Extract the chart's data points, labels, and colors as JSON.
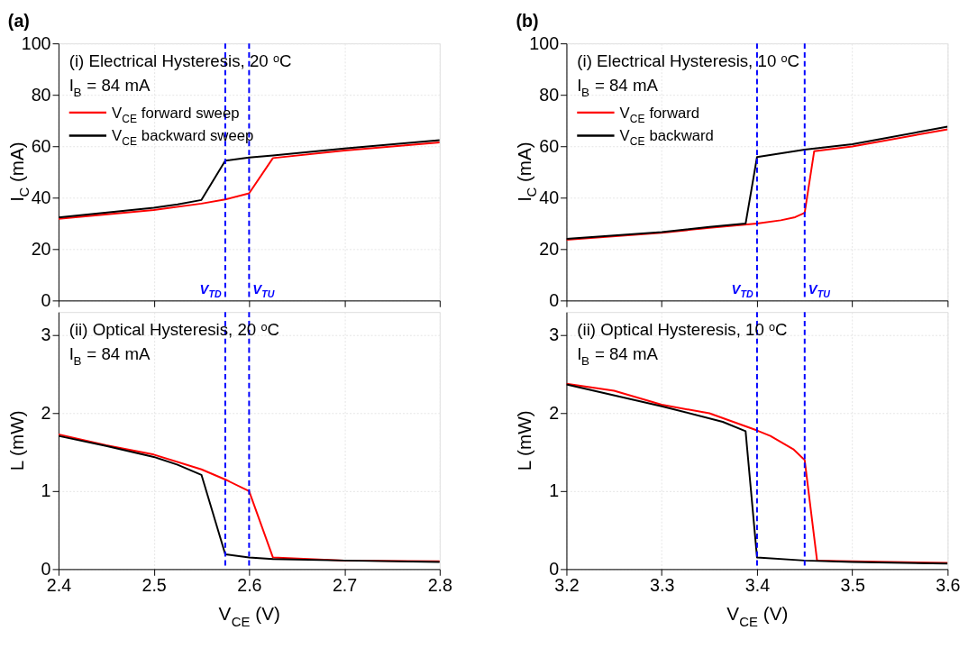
{
  "chart_data": [
    {
      "type": "line",
      "title": "(a)",
      "ylabel": "I$_{C}$ (mA)",
      "xlim": [
        2.4,
        2.8
      ],
      "xticks": [
        2.4,
        2.5,
        2.6,
        2.7,
        2.8
      ],
      "ylim": [
        0,
        100
      ],
      "yticks": [
        0,
        20,
        40,
        60,
        80,
        100
      ],
      "tick_labels": "y",
      "grid": true,
      "legend": "top left",
      "annotations": [
        "(i) Electrical Hysteresis, 20 ᵒC",
        "I$_{B}$ = 84 mA"
      ],
      "ref_lines": [
        {
          "axis": "x",
          "value": 2.575,
          "label": "V$_{TD}$",
          "color": "#0000ff",
          "line_style": "dashed"
        },
        {
          "axis": "x",
          "value": 2.6,
          "label": "V$_{TU}$",
          "color": "#0000ff",
          "line_style": "dashed"
        }
      ],
      "series": [
        {
          "name": "V$_{CE}$ forward sweep",
          "color": "#ff0000",
          "x": [
            2.4,
            2.5,
            2.55,
            2.575,
            2.6,
            2.625,
            2.7,
            2.8
          ],
          "values": [
            31.8,
            35.2,
            37.7,
            39.3,
            41.7,
            55.4,
            58.3,
            61.5
          ]
        },
        {
          "name": "V$_{CE}$ backward sweep",
          "color": "#000000",
          "x": [
            2.4,
            2.5,
            2.525,
            2.55,
            2.575,
            2.6,
            2.625,
            2.7,
            2.8
          ],
          "values": [
            32.3,
            36.1,
            37.4,
            39.1,
            54.4,
            55.6,
            56.4,
            59.1,
            62.4
          ]
        }
      ]
    },
    {
      "type": "line",
      "xlabel": "V$_{CE}$ (V)",
      "ylabel": "L (mW)",
      "xlim": [
        2.4,
        2.8
      ],
      "xticks": [
        2.4,
        2.5,
        2.6,
        2.7,
        2.8
      ],
      "ylim": [
        0,
        3.3
      ],
      "yticks": [
        0,
        1,
        2,
        3
      ],
      "grid": true,
      "annotations": [
        "(ii) Optical Hysteresis, 20 ᵒC",
        "I$_{B}$ = 84 mA"
      ],
      "ref_lines": [
        {
          "axis": "x",
          "value": 2.575,
          "color": "#0000ff",
          "line_style": "dashed"
        },
        {
          "axis": "x",
          "value": 2.6,
          "color": "#0000ff",
          "line_style": "dashed"
        }
      ],
      "series": [
        {
          "color": "#ff0000",
          "x": [
            2.4,
            2.45,
            2.5,
            2.55,
            2.575,
            2.6,
            2.625,
            2.7,
            2.8
          ],
          "values": [
            1.73,
            1.59,
            1.47,
            1.28,
            1.15,
            1.0,
            0.15,
            0.11,
            0.1
          ]
        },
        {
          "color": "#000000",
          "x": [
            2.4,
            2.45,
            2.5,
            2.525,
            2.55,
            2.575,
            2.6,
            2.625,
            2.7,
            2.8
          ],
          "values": [
            1.71,
            1.58,
            1.44,
            1.34,
            1.21,
            0.19,
            0.15,
            0.13,
            0.11,
            0.09
          ]
        }
      ]
    },
    {
      "type": "line",
      "title": "(b)",
      "ylabel": "I$_{C}$ (mA)",
      "xlim": [
        3.2,
        3.6
      ],
      "xticks": [
        3.2,
        3.3,
        3.4,
        3.5,
        3.6
      ],
      "ylim": [
        0,
        100
      ],
      "yticks": [
        0,
        20,
        40,
        60,
        80,
        100
      ],
      "tick_labels": "y",
      "grid": true,
      "legend": "top left",
      "annotations": [
        "(i) Electrical Hysteresis, 10 ᵒC",
        "I$_{B}$ = 84 mA"
      ],
      "ref_lines": [
        {
          "axis": "x",
          "value": 3.4,
          "label": "V$_{TD}$",
          "color": "#0000ff",
          "line_style": "dashed"
        },
        {
          "axis": "x",
          "value": 3.45,
          "label": "V$_{TU}$",
          "color": "#0000ff",
          "line_style": "dashed"
        }
      ],
      "series": [
        {
          "name": "V$_{CE}$ forward",
          "color": "#ff0000",
          "x": [
            3.2,
            3.3,
            3.35,
            3.4,
            3.425,
            3.44,
            3.45,
            3.46,
            3.5,
            3.6
          ],
          "values": [
            23.6,
            26.3,
            28.3,
            29.9,
            31.2,
            32.4,
            34.1,
            58.1,
            59.9,
            66.6
          ]
        },
        {
          "name": "V$_{CE}$ backward",
          "color": "#000000",
          "x": [
            3.2,
            3.3,
            3.35,
            3.388,
            3.4,
            3.45,
            3.5,
            3.6
          ],
          "values": [
            24.0,
            26.6,
            28.6,
            29.9,
            55.8,
            58.7,
            60.8,
            67.6
          ]
        }
      ]
    },
    {
      "type": "line",
      "xlabel": "V$_{CE}$ (V)",
      "ylabel": "L (mW)",
      "xlim": [
        3.2,
        3.6
      ],
      "xticks": [
        3.2,
        3.3,
        3.4,
        3.5,
        3.6
      ],
      "ylim": [
        0,
        3.3
      ],
      "yticks": [
        0,
        1,
        2,
        3
      ],
      "grid": true,
      "annotations": [
        "(ii) Optical Hysteresis, 10 ᵒC",
        "I$_{B}$ = 84 mA"
      ],
      "ref_lines": [
        {
          "axis": "x",
          "value": 3.4,
          "color": "#0000ff",
          "line_style": "dashed"
        },
        {
          "axis": "x",
          "value": 3.45,
          "color": "#0000ff",
          "line_style": "dashed"
        }
      ],
      "series": [
        {
          "color": "#ff0000",
          "x": [
            3.2,
            3.25,
            3.3,
            3.35,
            3.4,
            3.414,
            3.438,
            3.45,
            3.463,
            3.5,
            3.6
          ],
          "values": [
            2.38,
            2.29,
            2.11,
            2.0,
            1.78,
            1.71,
            1.54,
            1.4,
            0.11,
            0.1,
            0.08
          ]
        },
        {
          "color": "#000000",
          "x": [
            3.2,
            3.3,
            3.364,
            3.388,
            3.4,
            3.45,
            3.5,
            3.6
          ],
          "values": [
            2.37,
            2.09,
            1.89,
            1.77,
            0.15,
            0.11,
            0.09,
            0.07
          ]
        }
      ]
    }
  ]
}
